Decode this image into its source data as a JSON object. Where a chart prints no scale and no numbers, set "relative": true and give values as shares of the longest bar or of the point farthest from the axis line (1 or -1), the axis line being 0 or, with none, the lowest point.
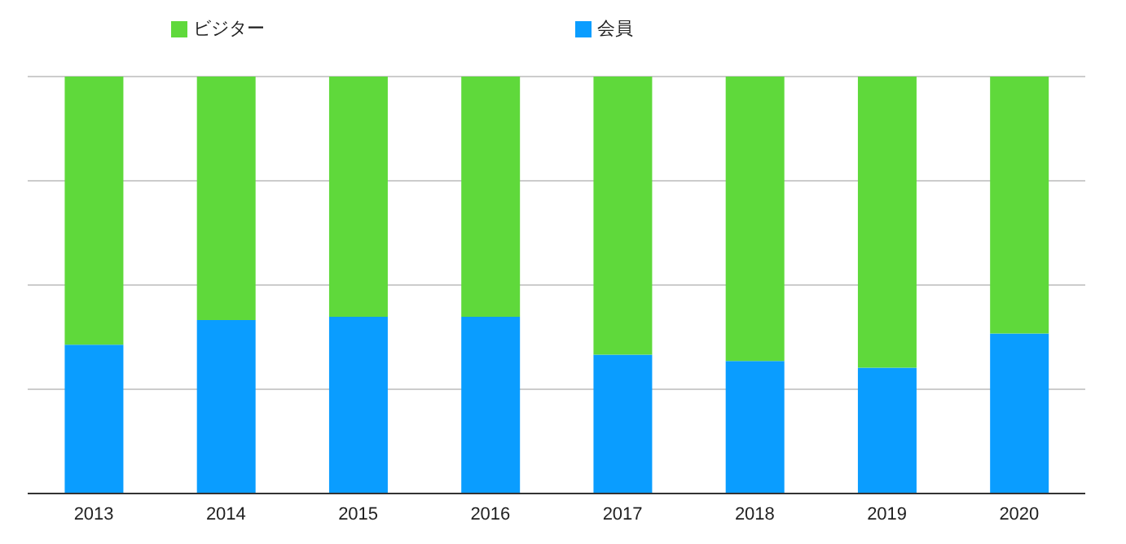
{
  "chart_data": {
    "type": "bar",
    "stacked": true,
    "relative": true,
    "grid": "y",
    "legend": "top",
    "categories": [
      "2013",
      "2014",
      "2015",
      "2016",
      "2017",
      "2018",
      "2019",
      "2020"
    ],
    "series": [
      {
        "name": "会員",
        "color": "#0a9dff",
        "values": [
          0.357,
          0.416,
          0.424,
          0.424,
          0.333,
          0.318,
          0.302,
          0.384
        ]
      },
      {
        "name": "ビジター",
        "color": "#5fd93b",
        "values": [
          0.643,
          0.584,
          0.576,
          0.576,
          0.667,
          0.682,
          0.698,
          0.616
        ]
      }
    ]
  }
}
